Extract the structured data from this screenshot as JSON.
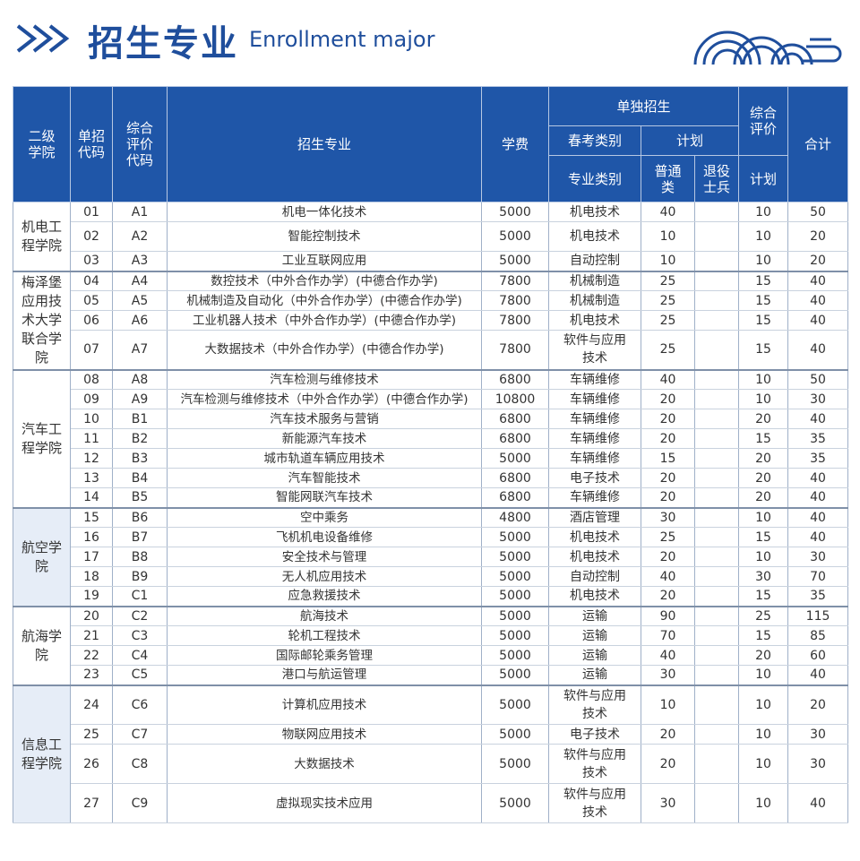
{
  "header": {
    "title_cn": "招生专业",
    "title_en": "Enrollment major"
  },
  "table": {
    "headers": {
      "dept": "二级学院",
      "code": "单招代码",
      "eval_code": "综合评价代码",
      "major": "招生专业",
      "fee": "学费",
      "independent": "单独招生",
      "spring_type": "春考类别",
      "plan": "计划",
      "major_type": "专业类别",
      "regular": "普通类",
      "veteran": "退役士兵",
      "eval": "综合评价",
      "eval_plan": "计划",
      "total": "合计"
    },
    "groups": [
      {
        "dept": "机电工程学院",
        "rows": [
          {
            "code": "01",
            "eval_code": "A1",
            "major": "机电一体化技术",
            "fee": "5000",
            "type": "机电技术",
            "regular": "40",
            "veteran": "",
            "eval": "10",
            "total": "50"
          },
          {
            "code": "02",
            "eval_code": "A2",
            "major": "智能控制技术",
            "fee": "5000",
            "type": "机电技术",
            "regular": "10",
            "veteran": "",
            "eval": "10",
            "total": "20"
          },
          {
            "code": "03",
            "eval_code": "A3",
            "major": "工业互联网应用",
            "fee": "5000",
            "type": "自动控制",
            "regular": "10",
            "veteran": "",
            "eval": "10",
            "total": "20"
          }
        ]
      },
      {
        "dept": "梅泽堡应用技术大学联合学院",
        "rows": [
          {
            "code": "04",
            "eval_code": "A4",
            "major": "数控技术（中外合作办学）(中德合作办学)",
            "fee": "7800",
            "type": "机械制造",
            "regular": "25",
            "veteran": "",
            "eval": "15",
            "total": "40"
          },
          {
            "code": "05",
            "eval_code": "A5",
            "major": "机械制造及自动化（中外合作办学）(中德合作办学)",
            "fee": "7800",
            "type": "机械制造",
            "regular": "25",
            "veteran": "",
            "eval": "15",
            "total": "40"
          },
          {
            "code": "06",
            "eval_code": "A6",
            "major": "工业机器人技术（中外合作办学）(中德合作办学)",
            "fee": "7800",
            "type": "机电技术",
            "regular": "25",
            "veteran": "",
            "eval": "15",
            "total": "40"
          },
          {
            "code": "07",
            "eval_code": "A7",
            "major": "大数据技术（中外合作办学）(中德合作办学)",
            "fee": "7800",
            "type": "软件与应用技术",
            "regular": "25",
            "veteran": "",
            "eval": "15",
            "total": "40"
          }
        ]
      },
      {
        "dept": "汽车工程学院",
        "rows": [
          {
            "code": "08",
            "eval_code": "A8",
            "major": "汽车检测与维修技术",
            "fee": "6800",
            "type": "车辆维修",
            "regular": "40",
            "veteran": "",
            "eval": "10",
            "total": "50"
          },
          {
            "code": "09",
            "eval_code": "A9",
            "major": "汽车检测与维修技术（中外合作办学）(中德合作办学)",
            "fee": "10800",
            "type": "车辆维修",
            "regular": "20",
            "veteran": "",
            "eval": "10",
            "total": "30"
          },
          {
            "code": "10",
            "eval_code": "B1",
            "major": "汽车技术服务与营销",
            "fee": "6800",
            "type": "车辆维修",
            "regular": "20",
            "veteran": "",
            "eval": "20",
            "total": "40"
          },
          {
            "code": "11",
            "eval_code": "B2",
            "major": "新能源汽车技术",
            "fee": "6800",
            "type": "车辆维修",
            "regular": "20",
            "veteran": "",
            "eval": "15",
            "total": "35"
          },
          {
            "code": "12",
            "eval_code": "B3",
            "major": "城市轨道车辆应用技术",
            "fee": "5000",
            "type": "车辆维修",
            "regular": "15",
            "veteran": "",
            "eval": "20",
            "total": "35"
          },
          {
            "code": "13",
            "eval_code": "B4",
            "major": "汽车智能技术",
            "fee": "6800",
            "type": "电子技术",
            "regular": "20",
            "veteran": "",
            "eval": "20",
            "total": "40"
          },
          {
            "code": "14",
            "eval_code": "B5",
            "major": "智能网联汽车技术",
            "fee": "6800",
            "type": "车辆维修",
            "regular": "20",
            "veteran": "",
            "eval": "20",
            "total": "40"
          }
        ]
      },
      {
        "dept": "航空学院",
        "rows": [
          {
            "code": "15",
            "eval_code": "B6",
            "major": "空中乘务",
            "fee": "4800",
            "type": "酒店管理",
            "regular": "30",
            "veteran": "",
            "eval": "10",
            "total": "40"
          },
          {
            "code": "16",
            "eval_code": "B7",
            "major": "飞机机电设备维修",
            "fee": "5000",
            "type": "机电技术",
            "regular": "25",
            "veteran": "",
            "eval": "15",
            "total": "40"
          },
          {
            "code": "17",
            "eval_code": "B8",
            "major": "安全技术与管理",
            "fee": "5000",
            "type": "机电技术",
            "regular": "20",
            "veteran": "",
            "eval": "10",
            "total": "30"
          },
          {
            "code": "18",
            "eval_code": "B9",
            "major": "无人机应用技术",
            "fee": "5000",
            "type": "自动控制",
            "regular": "40",
            "veteran": "",
            "eval": "30",
            "total": "70"
          },
          {
            "code": "19",
            "eval_code": "C1",
            "major": "应急救援技术",
            "fee": "5000",
            "type": "机电技术",
            "regular": "20",
            "veteran": "",
            "eval": "15",
            "total": "35"
          }
        ]
      },
      {
        "dept": "航海学院",
        "rows": [
          {
            "code": "20",
            "eval_code": "C2",
            "major": "航海技术",
            "fee": "5000",
            "type": "运输",
            "regular": "90",
            "veteran": "",
            "eval": "25",
            "total": "115"
          },
          {
            "code": "21",
            "eval_code": "C3",
            "major": "轮机工程技术",
            "fee": "5000",
            "type": "运输",
            "regular": "70",
            "veteran": "",
            "eval": "15",
            "total": "85"
          },
          {
            "code": "22",
            "eval_code": "C4",
            "major": "国际邮轮乘务管理",
            "fee": "5000",
            "type": "运输",
            "regular": "40",
            "veteran": "",
            "eval": "20",
            "total": "60"
          },
          {
            "code": "23",
            "eval_code": "C5",
            "major": "港口与航运管理",
            "fee": "5000",
            "type": "运输",
            "regular": "30",
            "veteran": "",
            "eval": "10",
            "total": "40"
          }
        ]
      },
      {
        "dept": "信息工程学院",
        "rows": [
          {
            "code": "24",
            "eval_code": "C6",
            "major": "计算机应用技术",
            "fee": "5000",
            "type": "软件与应用技术",
            "regular": "10",
            "veteran": "",
            "eval": "10",
            "total": "20"
          },
          {
            "code": "25",
            "eval_code": "C7",
            "major": "物联网应用技术",
            "fee": "5000",
            "type": "电子技术",
            "regular": "20",
            "veteran": "",
            "eval": "10",
            "total": "30"
          },
          {
            "code": "26",
            "eval_code": "C8",
            "major": "大数据技术",
            "fee": "5000",
            "type": "软件与应用技术",
            "regular": "20",
            "veteran": "",
            "eval": "10",
            "total": "30"
          },
          {
            "code": "27",
            "eval_code": "C9",
            "major": "虚拟现实技术应用",
            "fee": "5000",
            "type": "软件与应用技术",
            "regular": "30",
            "veteran": "",
            "eval": "10",
            "total": "40"
          }
        ]
      }
    ]
  },
  "colors": {
    "header_bg": "#1f56a8",
    "title": "#1f4e9c",
    "dept_shade": "#e6edf7"
  }
}
